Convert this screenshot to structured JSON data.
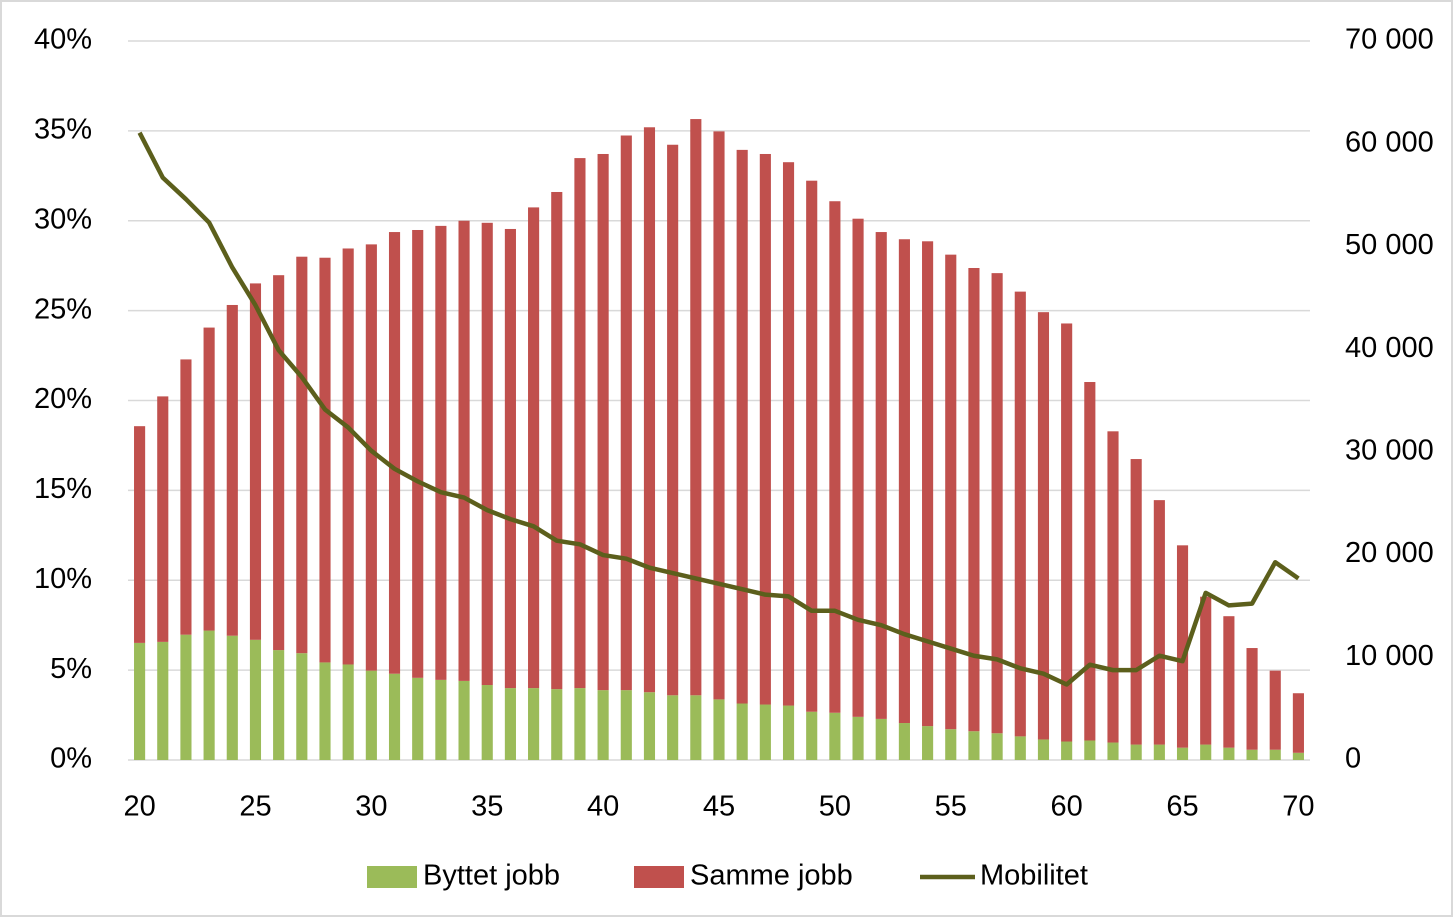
{
  "chart_data": {
    "type": "bar",
    "stacked": true,
    "x": [
      20,
      21,
      22,
      23,
      24,
      25,
      26,
      27,
      28,
      29,
      30,
      31,
      32,
      33,
      34,
      35,
      36,
      37,
      38,
      39,
      40,
      41,
      42,
      43,
      44,
      45,
      46,
      47,
      48,
      49,
      50,
      51,
      52,
      53,
      54,
      55,
      56,
      57,
      58,
      59,
      60,
      61,
      62,
      63,
      64,
      65,
      66,
      67,
      68,
      69,
      70
    ],
    "xlim": [
      19.5,
      70.5
    ],
    "xticks": [
      20,
      25,
      30,
      35,
      40,
      45,
      50,
      55,
      60,
      65,
      70
    ],
    "ylim": [
      0,
      40
    ],
    "yticks": [
      {
        "value": 0,
        "label": "0%"
      },
      {
        "value": 5,
        "label": "5%"
      },
      {
        "value": 10,
        "label": "10%"
      },
      {
        "value": 15,
        "label": "15%"
      },
      {
        "value": 20,
        "label": "20%"
      },
      {
        "value": 25,
        "label": "25%"
      },
      {
        "value": 30,
        "label": "30%"
      },
      {
        "value": 35,
        "label": "35%"
      },
      {
        "value": 40,
        "label": "40%"
      }
    ],
    "y2lim": [
      0,
      70000
    ],
    "y2ticks": [
      0,
      {
        "value": 10000,
        "label": "10 000"
      },
      {
        "value": 20000,
        "label": "20 000"
      },
      {
        "value": 30000,
        "label": "30 000"
      },
      {
        "value": 40000,
        "label": "40 000"
      },
      {
        "value": 50000,
        "label": "50 000"
      },
      {
        "value": 60000,
        "label": "60 000"
      },
      {
        "value": 70000,
        "label": "70 000"
      }
    ],
    "grid": true,
    "legend": "bottom",
    "series": [
      {
        "name": "Byttet jobb",
        "type": "bar",
        "axis": "y2",
        "color": "#9bbb59",
        "values": [
          11400,
          11500,
          12200,
          12600,
          12100,
          11700,
          10700,
          10400,
          9500,
          9300,
          8700,
          8400,
          8000,
          7800,
          7700,
          7300,
          7000,
          7000,
          6900,
          7000,
          6800,
          6800,
          6600,
          6300,
          6300,
          5900,
          5500,
          5400,
          5300,
          4700,
          4600,
          4200,
          4000,
          3600,
          3300,
          3000,
          2800,
          2600,
          2300,
          2000,
          1800,
          1900,
          1700,
          1500,
          1500,
          1200,
          1500,
          1200,
          1000,
          1000,
          700
        ]
      },
      {
        "name": "Samme jobb",
        "type": "bar",
        "axis": "y2",
        "color": "#c0504d",
        "values": [
          21100,
          23900,
          26800,
          29500,
          32200,
          34700,
          36500,
          38600,
          39400,
          40500,
          41500,
          43000,
          43600,
          44200,
          44800,
          45000,
          44700,
          46800,
          48400,
          51600,
          52200,
          54000,
          55000,
          53600,
          56100,
          55300,
          53900,
          53600,
          52900,
          51700,
          49800,
          48500,
          47400,
          47100,
          47200,
          46200,
          45100,
          44800,
          43300,
          41600,
          40700,
          34900,
          30300,
          27800,
          23800,
          19700,
          14400,
          12800,
          9900,
          7700,
          5800
        ]
      },
      {
        "name": "Mobilitet",
        "type": "line",
        "axis": "y",
        "color": "#5c5f1c",
        "values": [
          34.9,
          32.4,
          31.2,
          29.9,
          27.4,
          25.3,
          22.8,
          21.3,
          19.5,
          18.5,
          17.2,
          16.2,
          15.5,
          14.9,
          14.6,
          13.9,
          13.4,
          13.0,
          12.2,
          12.0,
          11.4,
          11.2,
          10.7,
          10.4,
          10.1,
          9.8,
          9.5,
          9.2,
          9.1,
          8.3,
          8.3,
          7.8,
          7.5,
          7.0,
          6.6,
          6.2,
          5.8,
          5.6,
          5.1,
          4.8,
          4.2,
          5.3,
          5.0,
          5.0,
          5.8,
          5.5,
          9.3,
          8.6,
          8.7,
          11.0,
          10.1
        ]
      }
    ]
  }
}
